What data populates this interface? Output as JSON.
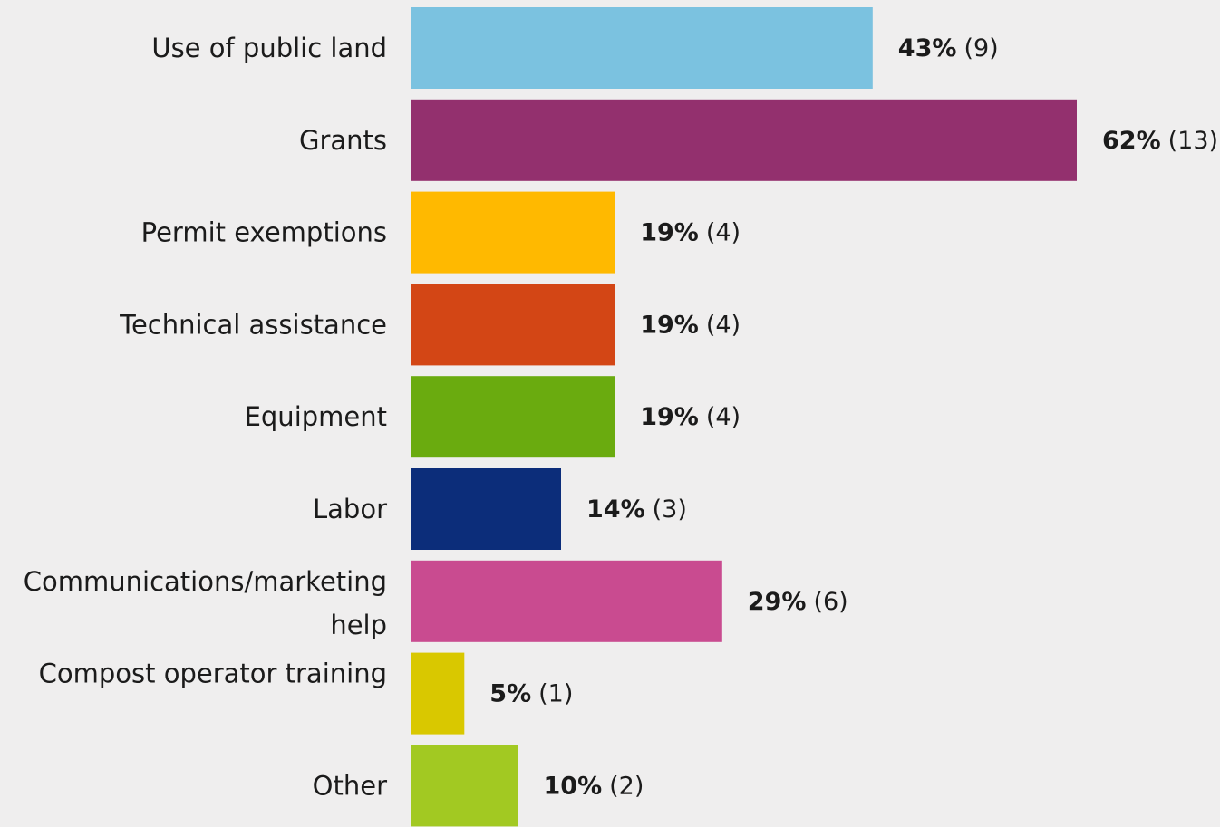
{
  "chart_data": {
    "type": "bar",
    "orientation": "horizontal",
    "categories": [
      "Use of public land",
      "Grants",
      "Permit exemptions",
      "Technical assistance",
      "Equipment",
      "Labor",
      "Communications/marketing help",
      "Compost operator training",
      "Other"
    ],
    "values": [
      43,
      62,
      19,
      19,
      19,
      14,
      29,
      5,
      10
    ],
    "counts": [
      9,
      13,
      4,
      4,
      4,
      3,
      6,
      1,
      2
    ],
    "value_labels": [
      "43%",
      "62%",
      "19%",
      "19%",
      "19%",
      "14%",
      "29%",
      "5%",
      "10%"
    ],
    "count_labels": [
      "(9)",
      "(13)",
      "(4)",
      "(4)",
      "(4)",
      "(3)",
      "(6)",
      "(1)",
      "(2)"
    ],
    "colors": [
      "#7bc2e0",
      "#93306e",
      "#ffb900",
      "#d34615",
      "#6aab0f",
      "#0c2d7a",
      "#c94b90",
      "#d9c800",
      "#a2c922"
    ],
    "xlim": [
      0,
      62
    ],
    "grid": false,
    "legend": "none"
  }
}
